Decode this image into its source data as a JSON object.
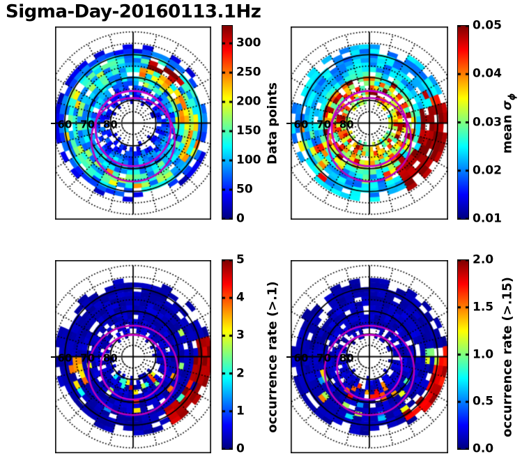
{
  "figure": {
    "title": "Sigma-Day-20160113.1Hz",
    "background": "#ffffff",
    "text_color": "#000000"
  },
  "colormap": "jet",
  "grid": {
    "color": "#000000",
    "solid_circles_lat": [
      60,
      70,
      80
    ],
    "dotted_circles_lat": [
      85,
      75,
      65,
      55,
      50
    ],
    "spoke_step_deg": 15,
    "lat_axis_labels": [
      "60",
      "70",
      "80"
    ],
    "lat_axis_values": [
      60,
      70,
      80
    ],
    "data_lat_range": [
      55.5,
      83.5
    ],
    "lat_ring_step_deg": 2,
    "mlt_sectors": 48,
    "default_ring_gap": [
      0.55,
      0.25,
      0.1,
      0.07,
      0.06,
      0.06,
      0.07,
      0.09,
      0.1,
      0.14,
      0.2,
      0.35,
      0.7,
      1.0
    ]
  },
  "oval_contours": {
    "color_inner": "#C800C8",
    "color_outer": "#BC00BC",
    "line_width": 2.6
  },
  "chart_data": [
    {
      "type": "polar_heatmap",
      "position": "top-left",
      "colorbar": {
        "label_main": "Data points",
        "label_math": "",
        "label_sub": "",
        "vmin": 0,
        "vmax": 330,
        "ticks": [
          0,
          50,
          100,
          150,
          200,
          250,
          300
        ],
        "tick_labels": [
          "0",
          "50",
          "100",
          "150",
          "200",
          "250",
          "300"
        ]
      },
      "lat_labels": [
        "60",
        "70",
        "80"
      ],
      "ovals": [
        {
          "dy_deg": 2.4,
          "r_deg": 16.5
        },
        {
          "dy_deg": 7.3,
          "r_deg": 18.3
        }
      ],
      "pattern": {
        "seed": 7,
        "noise": 0.45,
        "ring_base": [
          0.08,
          0.18,
          0.3,
          0.38,
          0.4,
          0.38,
          0.35,
          0.3,
          0.26,
          0.22,
          0.18,
          0.14,
          0.1,
          0.08
        ],
        "arcs": [
          {
            "lat": [
              62.5,
              66.5
            ],
            "ang": [
              18,
              55
            ],
            "v": 0.95,
            "jit": 0.07,
            "prob": 0.9
          },
          {
            "lat": [
              66,
              69.5
            ],
            "ang": [
              10,
              95
            ],
            "v": 0.7,
            "jit": 0.1,
            "prob": 0.8
          },
          {
            "lat": [
              69,
              73
            ],
            "ang": [
              10,
              100
            ],
            "v": 0.5,
            "jit": 0.12,
            "prob": 0.7
          },
          {
            "lat": [
              60,
              66
            ],
            "ang": [
              75,
              125
            ],
            "v": 0.65,
            "jit": 0.15,
            "prob": 0.6
          },
          {
            "lat": [
              62,
              68.5
            ],
            "ang": [
              148,
              215
            ],
            "v": 0.55,
            "jit": 0.2,
            "prob": 0.55
          },
          {
            "lat": [
              59,
              65
            ],
            "ang": [
              245,
              305
            ],
            "v": 0.55,
            "jit": 0.2,
            "prob": 0.45
          },
          {
            "lat": [
              73,
              79
            ],
            "ang": [
              310,
              50
            ],
            "gap": 0.3
          }
        ]
      },
      "description": "Data-point counts in a 56-82 deg latitude ring: mostly blue (50-120) with cyan/green/yellow concentric arcs; dark-red maximum (300+) in the upper-right sector near 63-66 deg."
    },
    {
      "type": "polar_heatmap",
      "position": "top-right",
      "colorbar": {
        "label_main": "mean ",
        "label_math": "σ",
        "label_sub": "ϕ",
        "vmin": 0.01,
        "vmax": 0.05,
        "ticks": [
          0.01,
          0.02,
          0.03,
          0.04,
          0.05
        ],
        "tick_labels": [
          "0.01",
          "0.02",
          "0.03",
          "0.04",
          "0.05"
        ]
      },
      "lat_labels": [
        "60",
        "70",
        "80"
      ],
      "ovals": [
        {
          "dy_deg": 2.4,
          "r_deg": 16.5
        },
        {
          "dy_deg": 7.3,
          "r_deg": 18.3
        }
      ],
      "pattern": {
        "seed": 13,
        "noise": 0.3,
        "ring_base": [
          0.3,
          0.3,
          0.3,
          0.3,
          0.3,
          0.32,
          0.35,
          0.4,
          0.5,
          0.6,
          0.65,
          0.6,
          0.5,
          0.35
        ],
        "ring_gap": [
          0.5,
          0.2,
          0.08,
          0.06,
          0.06,
          0.06,
          0.07,
          0.09,
          0.1,
          0.12,
          0.15,
          0.2,
          0.45,
          1.0
        ],
        "arcs": [
          {
            "lat": [
              70,
              80.5
            ],
            "ang": [
              0,
              360
            ],
            "v": 0.72,
            "jit": 0.3,
            "prob": 0.85
          },
          {
            "lat": [
              64,
              72
            ],
            "ang": [
              120,
              250
            ],
            "v": 0.65,
            "jit": 0.3,
            "prob": 0.6
          },
          {
            "lat": [
              58,
              70
            ],
            "ang": [
              215,
              268
            ],
            "v": 0.6,
            "jit": 0.3,
            "prob": 0.4
          },
          {
            "lat": [
              55.5,
              67
            ],
            "ang": [
              75,
              150
            ],
            "v": 0.97,
            "jit": 0.05,
            "prob": 0.88,
            "solid": true
          },
          {
            "lat": [
              57,
              64
            ],
            "ang": [
              58,
              78
            ],
            "v": 0.8,
            "jit": 0.15,
            "prob": 0.5
          },
          {
            "lat": [
              72,
              80.5
            ],
            "ang": [
              300,
              60
            ],
            "gap": 0.3
          }
        ]
      },
      "description": "Mean sigma-phi: upper half mostly cyan (~0.02); large dark-red region (~0.05) on the right side 56-67 deg; warm red/orange/yellow mix at high latitudes, strongest on the nightside."
    },
    {
      "type": "polar_heatmap",
      "position": "bottom-left",
      "colorbar": {
        "label_main": "occurrence rate (>.1)",
        "label_math": "",
        "label_sub": "",
        "vmin": 0,
        "vmax": 5,
        "ticks": [
          0,
          1,
          2,
          3,
          4,
          5
        ],
        "tick_labels": [
          "0",
          "1",
          "2",
          "3",
          "4",
          "5"
        ]
      },
      "lat_labels": [
        "60",
        "70",
        "80"
      ],
      "ovals": [
        {
          "dy_deg": 4.6,
          "r_deg": 14.2
        },
        {
          "dy_deg": 6.0,
          "r_deg": 19.6
        }
      ],
      "pattern": {
        "seed": 21,
        "noise": 0.6,
        "ring_base": [
          0.05,
          0.05,
          0.05,
          0.05,
          0.05,
          0.06,
          0.06,
          0.06,
          0.06,
          0.07,
          0.07,
          0.07,
          0.06,
          0.05
        ],
        "arcs": [
          {
            "lat": [
              55.5,
              63.5
            ],
            "ang": [
              78,
              152
            ],
            "v": 0.95,
            "jit": 0.06,
            "prob": 0.82,
            "solid": true
          },
          {
            "lat": [
              62,
              74
            ],
            "ang": [
              100,
              265
            ],
            "v": 0.55,
            "jit": 0.35,
            "prob": 0.17
          },
          {
            "lat": [
              74,
              80
            ],
            "ang": [
              130,
              225
            ],
            "v": 0.65,
            "jit": 0.3,
            "prob": 0.28
          },
          {
            "lat": [
              62,
              67
            ],
            "ang": [
              238,
              268
            ],
            "v": 0.68,
            "jit": 0.15,
            "prob": 0.5
          },
          {
            "lat": [
              64,
              70
            ],
            "ang": [
              60,
              100
            ],
            "v": 0.5,
            "jit": 0.3,
            "prob": 0.3
          }
        ]
      },
      "description": "Occurrence rate of sigma-phi > 0.1: mostly dark blue (~0); dark-red patch (~5) on the lower-right 56-63 deg; sparse bright cells along the oval in the bottom half."
    },
    {
      "type": "polar_heatmap",
      "position": "bottom-right",
      "colorbar": {
        "label_main": "occurrence rate (>.15)",
        "label_math": "",
        "label_sub": "",
        "vmin": 0,
        "vmax": 2,
        "ticks": [
          0,
          0.5,
          1,
          1.5,
          2
        ],
        "tick_labels": [
          "0.0",
          "0.5",
          "1.0",
          "1.5",
          "2.0"
        ]
      },
      "lat_labels": [
        "60",
        "70",
        "80"
      ],
      "ovals": [
        {
          "dy_deg": 4.6,
          "r_deg": 14.2
        },
        {
          "dy_deg": 6.0,
          "r_deg": 19.6
        }
      ],
      "pattern": {
        "seed": 42,
        "noise": 0.6,
        "ring_base": [
          0.05,
          0.05,
          0.05,
          0.05,
          0.05,
          0.06,
          0.06,
          0.06,
          0.06,
          0.07,
          0.07,
          0.07,
          0.06,
          0.05
        ],
        "arcs": [
          {
            "lat": [
              55.5,
              62.5
            ],
            "ang": [
              85,
              150
            ],
            "v": 0.92,
            "jit": 0.08,
            "prob": 0.78,
            "solid": true
          },
          {
            "lat": [
              60,
              66.5
            ],
            "ang": [
              80,
              98
            ],
            "v": 0.6,
            "jit": 0.12,
            "prob": 0.8
          },
          {
            "lat": [
              62,
              72
            ],
            "ang": [
              105,
              255
            ],
            "v": 0.45,
            "jit": 0.3,
            "prob": 0.14
          },
          {
            "lat": [
              70,
              78
            ],
            "ang": [
              145,
              215
            ],
            "v": 0.85,
            "jit": 0.15,
            "prob": 0.25
          },
          {
            "lat": [
              57,
              63
            ],
            "ang": [
              150,
              175
            ],
            "v": 0.5,
            "jit": 0.25,
            "prob": 0.3
          }
        ]
      },
      "description": "Occurrence rate of sigma-phi > 0.15: mostly dark blue (~0); red patch (~2) on the lower-right; yellow-green strip near 3 o'clock at 60-66 deg; few bright cells elsewhere."
    }
  ]
}
